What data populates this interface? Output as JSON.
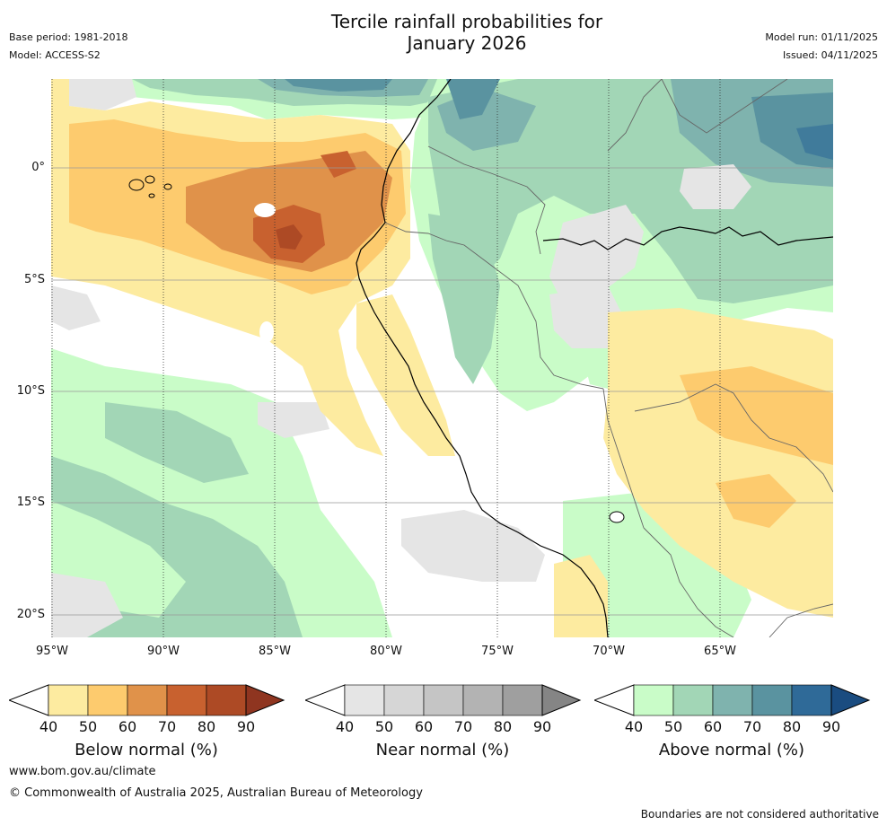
{
  "header": {
    "title_line1": "Tercile rainfall probabilities for",
    "title_line2": "January 2026",
    "base_period": "Base period: 1981-2018",
    "model": "Model: ACCESS-S2",
    "model_run": "Model run: 01/11/2025",
    "issued": "Issued: 04/11/2025"
  },
  "map": {
    "lat_labels": [
      "0°",
      "5°S",
      "10°S",
      "15°S",
      "20°S"
    ],
    "lon_labels": [
      "95°W",
      "90°W",
      "85°W",
      "80°W",
      "75°W",
      "70°W",
      "65°W"
    ],
    "colors": {
      "below": [
        "#fdeba0",
        "#fdcb6e",
        "#e0924a",
        "#c8612f",
        "#ad4a25",
        "#8f3520"
      ],
      "near": [
        "#e5e5e5",
        "#d6d6d6",
        "#c5c5c5",
        "#b3b3b3",
        "#9f9f9f",
        "#858585"
      ],
      "above": [
        "#c9fcc8",
        "#a2d6b6",
        "#7fb3ae",
        "#5a93a0",
        "#2f6a98",
        "#1a4c80"
      ]
    }
  },
  "legend": {
    "tick_labels": [
      "40",
      "50",
      "60",
      "70",
      "80",
      "90"
    ],
    "below_title": "Below normal (%)",
    "near_title": "Near normal (%)",
    "above_title": "Above normal (%)"
  },
  "footer": {
    "website": "www.bom.gov.au/climate",
    "copyright": "© Commonwealth of Australia 2025, Australian Bureau of Meteorology",
    "disclaimer": "Boundaries are not considered authoritative"
  }
}
